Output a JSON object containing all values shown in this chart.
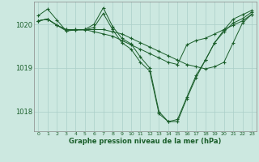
{
  "title": "",
  "xlabel": "Graphe pression niveau de la mer (hPa)",
  "background_color": "#cce8e0",
  "grid_color": "#aacfc8",
  "line_color": "#1a5e2a",
  "series": [
    [
      1020.2,
      1020.35,
      1020.1,
      1019.85,
      1019.87,
      1019.88,
      1020.0,
      1020.38,
      1019.95,
      1019.68,
      1019.55,
      1019.25,
      1019.0,
      1018.0,
      1017.77,
      1017.77,
      1018.3,
      1018.78,
      1019.18,
      1019.58,
      1019.87,
      1020.12,
      1020.22,
      1020.32
    ],
    [
      1020.08,
      1020.12,
      1019.98,
      1019.88,
      1019.88,
      1019.88,
      1019.88,
      1019.88,
      1019.83,
      1019.78,
      1019.68,
      1019.58,
      1019.48,
      1019.38,
      1019.28,
      1019.18,
      1019.08,
      1019.03,
      1018.98,
      1019.03,
      1019.13,
      1019.58,
      1020.03,
      1020.23
    ],
    [
      1020.08,
      1020.12,
      1019.98,
      1019.88,
      1019.88,
      1019.88,
      1019.83,
      1019.78,
      1019.73,
      1019.63,
      1019.53,
      1019.43,
      1019.33,
      1019.23,
      1019.13,
      1019.08,
      1019.53,
      1019.63,
      1019.68,
      1019.78,
      1019.88,
      1019.98,
      1020.08,
      1020.23
    ],
    [
      1020.08,
      1020.12,
      1019.98,
      1019.85,
      1019.87,
      1019.87,
      1019.93,
      1020.25,
      1019.88,
      1019.58,
      1019.43,
      1019.13,
      1018.93,
      1017.95,
      1017.77,
      1017.82,
      1018.33,
      1018.83,
      1019.18,
      1019.58,
      1019.83,
      1020.03,
      1020.13,
      1020.28
    ]
  ],
  "ylim": [
    1017.55,
    1020.52
  ],
  "yticks": [
    1018,
    1019,
    1020
  ],
  "xticks": [
    0,
    1,
    2,
    3,
    4,
    5,
    6,
    7,
    8,
    9,
    10,
    11,
    12,
    13,
    14,
    15,
    16,
    17,
    18,
    19,
    20,
    21,
    22,
    23
  ],
  "figsize": [
    3.2,
    2.0
  ],
  "dpi": 100
}
